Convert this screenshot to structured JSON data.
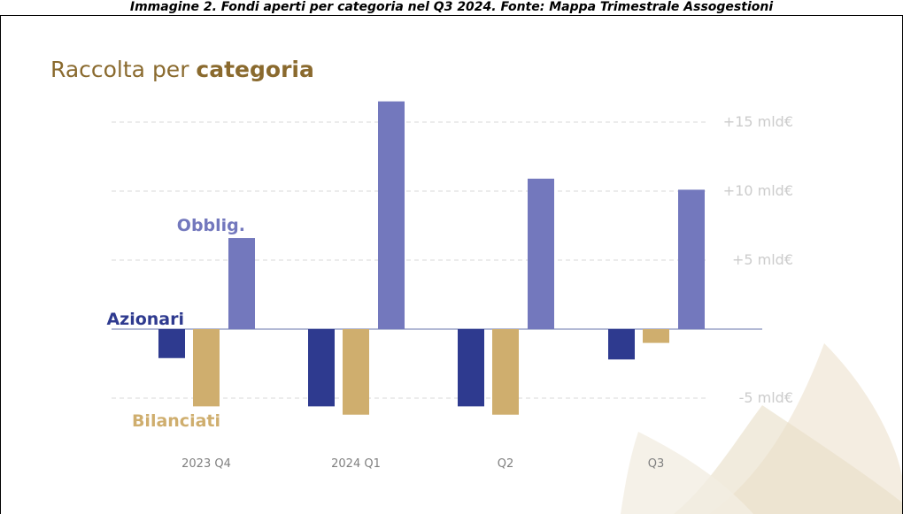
{
  "caption": "Immagine 2. Fondi aperti per categoria nel Q3 2024. Fonte: Mappa Trimestrale Assogestioni",
  "colors": {
    "title": "#8a6a2e",
    "azionari": "#2e3a8f",
    "bilanciati": "#cfae6e",
    "obbligazionari": "#7378bd",
    "grid": "#d9d9d9",
    "zero_line": "#9aa3c7"
  },
  "chart_data": {
    "type": "bar",
    "title": "Raccolta per categoria",
    "title_parts": [
      "Raccolta per ",
      "categoria"
    ],
    "categories": [
      "2023 Q4",
      "2024 Q1",
      "Q2",
      "Q3"
    ],
    "series": [
      {
        "name": "Azionari",
        "values": [
          -2.1,
          -5.6,
          -5.6,
          -2.2
        ]
      },
      {
        "name": "Bilanciati",
        "values": [
          -5.6,
          -6.2,
          -6.2,
          -1.0
        ]
      },
      {
        "name": "Obblig.",
        "values": [
          6.6,
          16.5,
          10.9,
          10.1
        ]
      }
    ],
    "unit": "mld€",
    "y_ticks": [
      {
        "value": 15,
        "label": "+15 mld€"
      },
      {
        "value": 10,
        "label": "+10 mld€"
      },
      {
        "value": 5,
        "label": "+5 mld€"
      },
      {
        "value": -5,
        "label": "-5 mld€"
      }
    ],
    "ylim": [
      -7,
      17
    ],
    "grid": true,
    "legend": "inline labels"
  }
}
